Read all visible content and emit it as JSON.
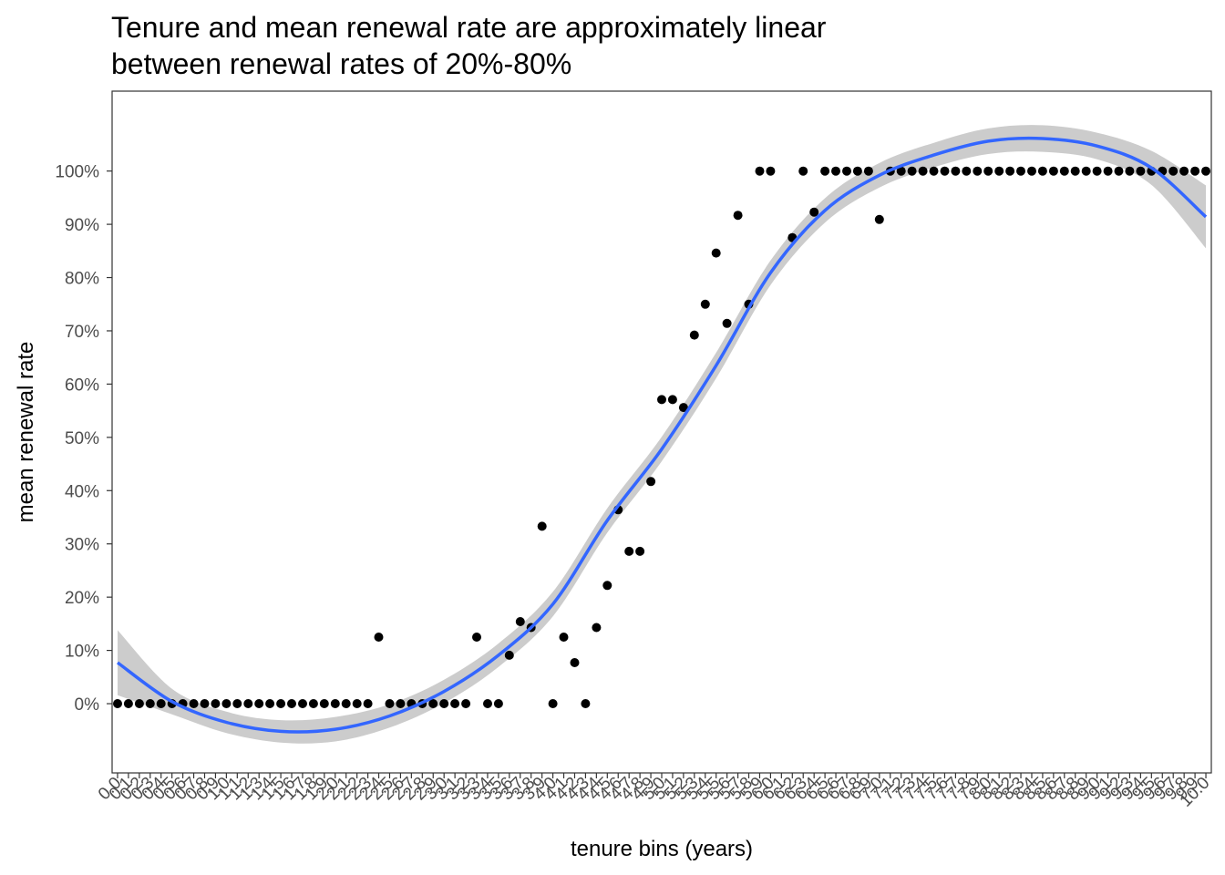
{
  "chart_data": {
    "type": "scatter",
    "title_lines": [
      "Tenure and mean renewal rate are approximately linear",
      "between renewal rates of 20%-80%"
    ],
    "xlabel": "tenure bins (years)",
    "ylabel": "mean renewal rate",
    "x_tick_labels": [
      "0.0",
      "0.1",
      "0.2",
      "0.3",
      "0.4",
      "0.5",
      "0.6",
      "0.7",
      "0.8",
      "0.9",
      "1.0",
      "1.1",
      "1.2",
      "1.3",
      "1.4",
      "1.5",
      "1.6",
      "1.7",
      "1.8",
      "1.9",
      "2.0",
      "2.1",
      "2.2",
      "2.3",
      "2.4",
      "2.5",
      "2.6",
      "2.7",
      "2.8",
      "2.9",
      "3.0",
      "3.1",
      "3.2",
      "3.3",
      "3.4",
      "3.5",
      "3.6",
      "3.7",
      "3.8",
      "3.9",
      "4.0",
      "4.1",
      "4.2",
      "4.3",
      "4.4",
      "4.5",
      "4.6",
      "4.7",
      "4.8",
      "4.9",
      "5.0",
      "5.1",
      "5.2",
      "5.3",
      "5.4",
      "5.5",
      "5.6",
      "5.7",
      "5.8",
      "5.9",
      "6.0",
      "6.1",
      "6.2",
      "6.3",
      "6.4",
      "6.5",
      "6.6",
      "6.7",
      "6.8",
      "6.9",
      "7.0",
      "7.1",
      "7.2",
      "7.3",
      "7.4",
      "7.5",
      "7.6",
      "7.7",
      "7.8",
      "7.9",
      "8.0",
      "8.1",
      "8.2",
      "8.3",
      "8.4",
      "8.5",
      "8.6",
      "8.7",
      "8.8",
      "8.9",
      "9.0",
      "9.1",
      "9.2",
      "9.3",
      "9.4",
      "9.5",
      "9.6",
      "9.7",
      "9.8",
      "9.9",
      "10.0"
    ],
    "y_tick_labels": [
      "0%",
      "10%",
      "20%",
      "30%",
      "40%",
      "50%",
      "60%",
      "70%",
      "80%",
      "90%",
      "100%"
    ],
    "y_tick_values": [
      0,
      10,
      20,
      30,
      40,
      50,
      60,
      70,
      80,
      90,
      100
    ],
    "xlim": [
      -0.5,
      100.5
    ],
    "ylim": [
      -13,
      115
    ],
    "grid": false,
    "series": [
      {
        "type": "points",
        "x": [
          0,
          1,
          2,
          3,
          4,
          5,
          6,
          7,
          8,
          9,
          10,
          11,
          12,
          13,
          14,
          15,
          16,
          17,
          18,
          19,
          20,
          21,
          22,
          23,
          24,
          25,
          26,
          27,
          28,
          29,
          30,
          31,
          32,
          33,
          34,
          35,
          36,
          37,
          38,
          39,
          40,
          41,
          42,
          43,
          44,
          45,
          46,
          47,
          48,
          49,
          50,
          51,
          52,
          53,
          54,
          55,
          56,
          57,
          58,
          59,
          60,
          61,
          62,
          63,
          64,
          65,
          66,
          67,
          68,
          69,
          70,
          71,
          72,
          73,
          74,
          75,
          76,
          77,
          78,
          79,
          80,
          81,
          82,
          83,
          84,
          85,
          86,
          87,
          88,
          89,
          90,
          91,
          92,
          93,
          94,
          95,
          96,
          97,
          98,
          99,
          100
        ],
        "y": [
          0,
          0,
          0,
          0,
          0,
          0,
          0,
          0,
          0,
          0,
          0,
          0,
          0,
          0,
          0,
          0,
          0,
          0,
          0,
          0,
          0,
          0,
          0,
          0,
          12.5,
          0,
          0,
          0,
          0,
          0,
          0,
          0,
          0,
          12.5,
          0,
          0,
          9.1,
          15.4,
          14.3,
          33.3,
          0,
          12.5,
          7.7,
          0,
          14.3,
          22.2,
          36.4,
          28.6,
          28.6,
          41.7,
          57.1,
          57.1,
          55.6,
          69.2,
          75,
          84.6,
          71.4,
          91.7,
          75,
          100,
          100,
          null,
          87.5,
          100,
          92.3,
          100,
          100,
          100,
          100,
          100,
          90.9,
          100,
          100,
          100,
          100,
          100,
          100,
          100,
          100,
          100,
          100,
          100,
          100,
          100,
          100,
          100,
          100,
          100,
          100,
          100,
          100,
          100,
          100,
          100,
          100,
          100,
          100,
          100,
          100,
          100,
          100
        ]
      },
      {
        "type": "smooth",
        "x": [
          0,
          5,
          10,
          15,
          20,
          25,
          30,
          35,
          40,
          45,
          50,
          55,
          60,
          65,
          70,
          75,
          80,
          85,
          90,
          95,
          100
        ],
        "y": [
          7.7,
          0.4,
          -3.5,
          -5.2,
          -4.8,
          -2.3,
          2.3,
          9.1,
          18.7,
          34.4,
          47.8,
          63.5,
          80.9,
          92.6,
          99.2,
          103.0,
          105.6,
          106.1,
          104.7,
          100.6,
          91.4
        ],
        "ci_lower": [
          1.6,
          -2.0,
          -5.5,
          -7.3,
          -7.1,
          -4.5,
          0.1,
          6.9,
          16.4,
          32.1,
          45.5,
          61.1,
          78.6,
          90.3,
          96.9,
          100.7,
          103.2,
          103.6,
          102.2,
          97.4,
          85.5
        ],
        "ci_upper": [
          13.8,
          2.8,
          -1.5,
          -3.1,
          -2.5,
          -0.1,
          4.5,
          11.3,
          21.0,
          36.7,
          50.1,
          65.9,
          83.2,
          94.9,
          101.5,
          105.3,
          108.0,
          108.6,
          107.2,
          103.8,
          97.3
        ]
      }
    ],
    "colors": {
      "points": "#000000",
      "smooth_line": "#3366ff",
      "ci_band": "#cccccc",
      "panel_border": "#333333",
      "tick_text": "#4d4d4d"
    }
  }
}
